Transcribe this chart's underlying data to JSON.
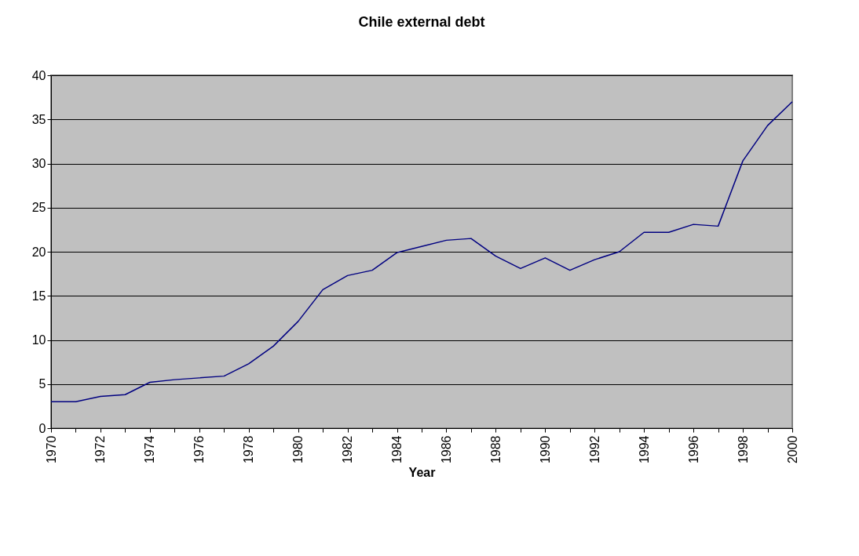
{
  "chart_data": {
    "type": "line",
    "title": "Chile external debt",
    "xlabel": "Year",
    "x": [
      1970,
      1971,
      1972,
      1973,
      1974,
      1975,
      1976,
      1977,
      1978,
      1979,
      1980,
      1981,
      1982,
      1983,
      1984,
      1985,
      1986,
      1987,
      1988,
      1989,
      1990,
      1991,
      1992,
      1993,
      1994,
      1995,
      1996,
      1997,
      1998,
      1999,
      2000
    ],
    "series": [
      {
        "color": "#000080",
        "values": [
          3.0,
          3.0,
          3.6,
          3.8,
          5.2,
          5.5,
          5.7,
          5.9,
          7.3,
          9.3,
          12.1,
          15.7,
          17.3,
          17.9,
          19.9,
          20.6,
          21.3,
          21.5,
          19.5,
          18.1,
          19.3,
          17.9,
          19.1,
          20.0,
          22.2,
          22.2,
          23.1,
          22.9,
          30.3,
          34.3,
          37.0
        ]
      }
    ],
    "xlim": [
      1970,
      2000
    ],
    "xticks": [
      1970,
      {
        "value": 1971,
        "label": null
      },
      1972,
      {
        "value": 1973,
        "label": null
      },
      1974,
      {
        "value": 1975,
        "label": null
      },
      1976,
      {
        "value": 1977,
        "label": null
      },
      1978,
      {
        "value": 1979,
        "label": null
      },
      1980,
      {
        "value": 1981,
        "label": null
      },
      1982,
      {
        "value": 1983,
        "label": null
      },
      1984,
      {
        "value": 1985,
        "label": null
      },
      1986,
      {
        "value": 1987,
        "label": null
      },
      1988,
      {
        "value": 1989,
        "label": null
      },
      1990,
      {
        "value": 1991,
        "label": null
      },
      1992,
      {
        "value": 1993,
        "label": null
      },
      1994,
      {
        "value": 1995,
        "label": null
      },
      1996,
      {
        "value": 1997,
        "label": null
      },
      1998,
      {
        "value": 1999,
        "label": null
      },
      2000
    ],
    "ylim": [
      0,
      40
    ],
    "yticks": [
      0,
      5,
      10,
      15,
      20,
      25,
      30,
      35,
      40
    ],
    "grid": "y",
    "marker": "none",
    "line_style": "solid"
  }
}
